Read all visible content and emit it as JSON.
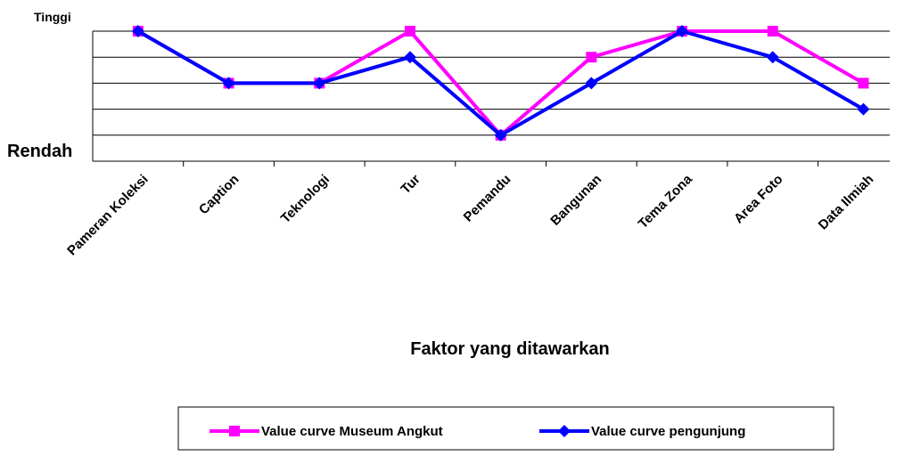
{
  "chart_data": {
    "type": "line",
    "y_labels": {
      "top": "Tinggi",
      "bottom": "Rendah"
    },
    "x_label": "Faktor yang ditawarkan",
    "categories": [
      "Pameran Koleksi",
      "Caption",
      "Teknologi",
      "Tur",
      "Pemandu",
      "Bangunan",
      "Tema Zona",
      "Area Foto",
      "Data Ilmiah"
    ],
    "series": [
      {
        "name": "Value curve Museum Angkut",
        "color": "#ff00ff",
        "marker": "square",
        "values": [
          5,
          3,
          3,
          5,
          1,
          4,
          5,
          5,
          3
        ]
      },
      {
        "name": "Value curve pengunjung",
        "color": "#0000ff",
        "marker": "diamond",
        "values": [
          5,
          3,
          3,
          4,
          1,
          3,
          5,
          4,
          2
        ]
      }
    ],
    "ylim": [
      0,
      5
    ],
    "yticks": [
      1,
      2,
      3,
      4,
      5
    ],
    "grid": true
  }
}
